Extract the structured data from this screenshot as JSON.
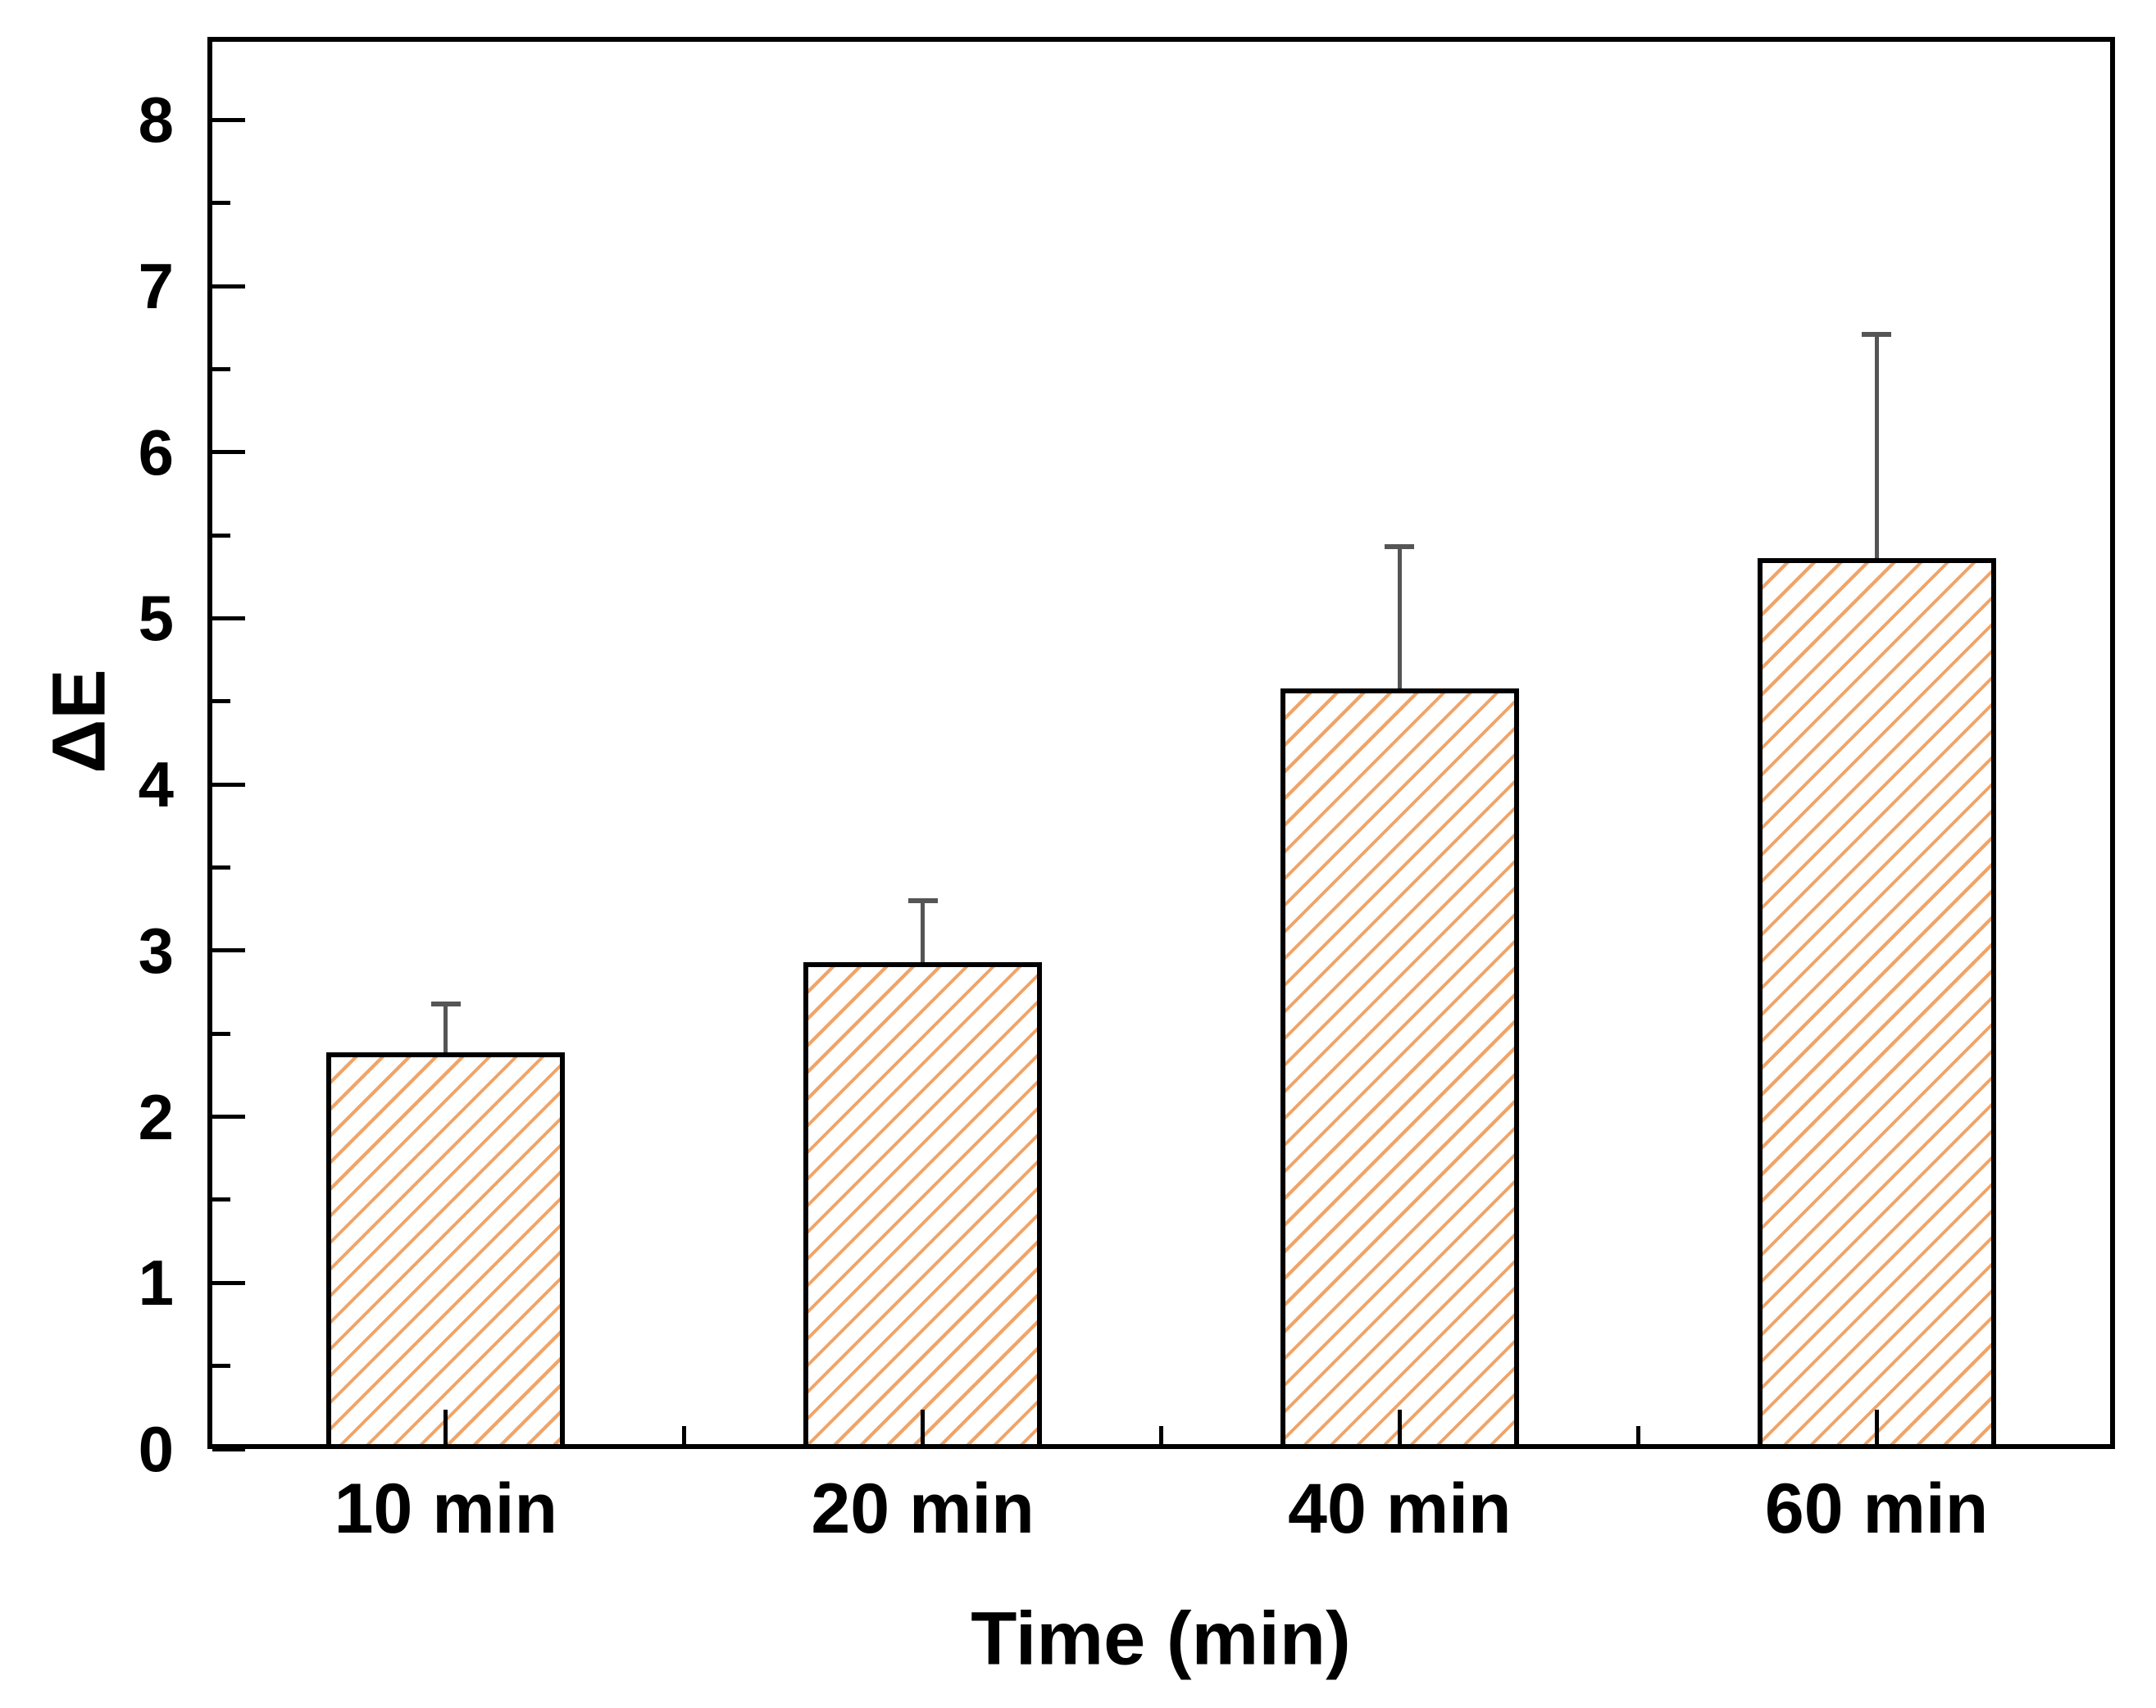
{
  "chart_data": {
    "type": "bar",
    "title": "",
    "categories": [
      "10 min",
      "20 min",
      "40 min",
      "60 min"
    ],
    "values": [
      2.39,
      2.93,
      4.58,
      5.36
    ],
    "errors_upper": [
      0.29,
      0.37,
      0.85,
      1.35
    ],
    "xlabel": "Time (min)",
    "ylabel": "ΔE",
    "ylim": [
      0,
      8.5
    ],
    "yticks_major": [
      0,
      1,
      2,
      3,
      4,
      5,
      6,
      7,
      8
    ],
    "ytick_minor_step": 0.5,
    "grid": false,
    "legend": "none",
    "bar_fill_style": "diagonal-hatch",
    "hatch_color": "#F0A468",
    "bar_edge_color": "#000000",
    "error_bar_color": "#555555",
    "axis_color": "#000000",
    "text_color": "#000000",
    "background_color": "#FFFFFF"
  }
}
